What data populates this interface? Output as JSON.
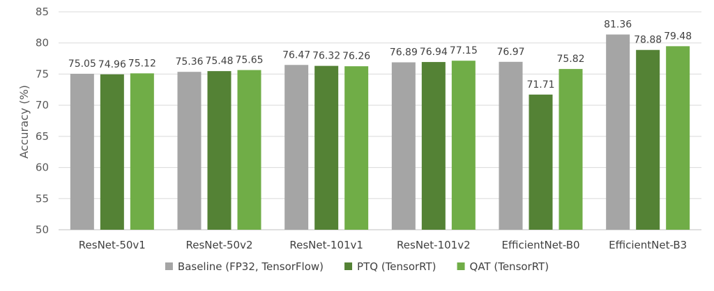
{
  "chart_data": {
    "type": "bar",
    "title": "",
    "xlabel": "",
    "ylabel": "Accuracy (%)",
    "ylim": [
      50,
      85
    ],
    "ytick_step": 5,
    "grid": true,
    "legend_position": "bottom",
    "categories": [
      "ResNet-50v1",
      "ResNet-50v2",
      "ResNet-101v1",
      "ResNet-101v2",
      "EfficientNet-B0",
      "EfficientNet-B3"
    ],
    "series": [
      {
        "name": "Baseline (FP32, TensorFlow)",
        "color": "#a5a5a5",
        "values": [
          75.05,
          75.36,
          76.47,
          76.89,
          76.97,
          81.36
        ]
      },
      {
        "name": "PTQ (TensorRT)",
        "color": "#548235",
        "values": [
          74.96,
          75.48,
          76.32,
          76.94,
          71.71,
          78.88
        ]
      },
      {
        "name": "QAT (TensorRT)",
        "color": "#70ad47",
        "values": [
          75.12,
          75.65,
          76.26,
          77.15,
          75.82,
          79.48
        ]
      }
    ]
  }
}
